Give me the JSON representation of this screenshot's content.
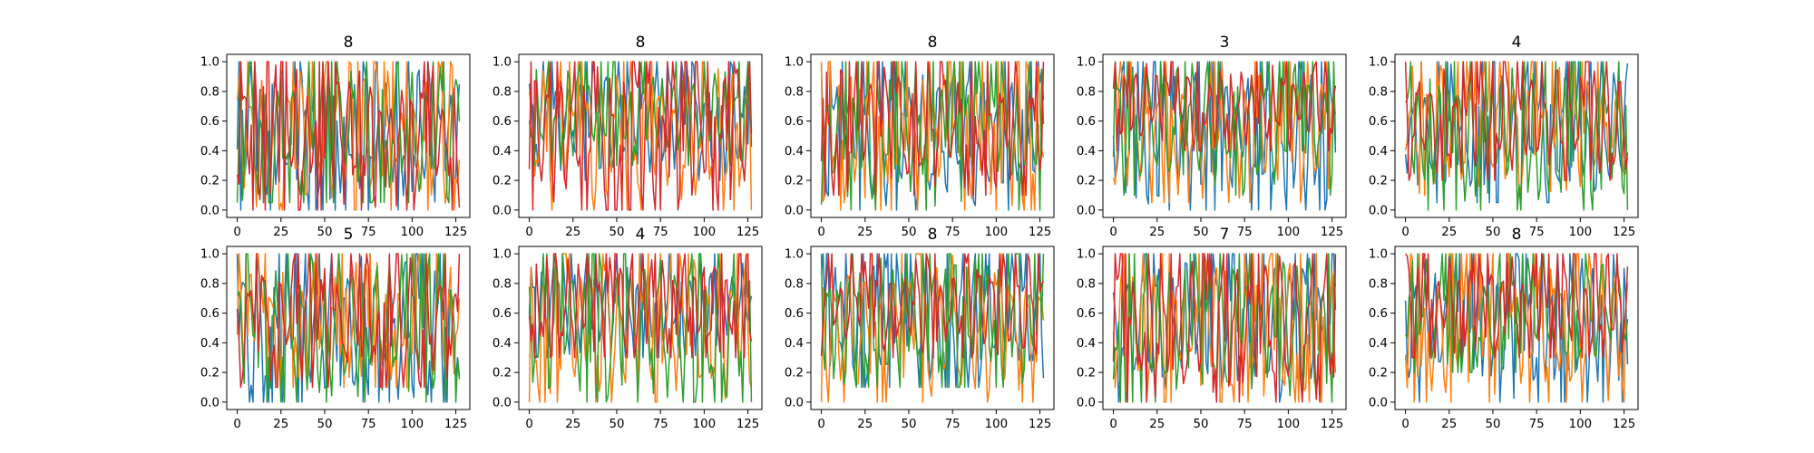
{
  "chart_data": [
    {
      "type": "line",
      "title": "8",
      "x": {
        "min": 0,
        "max": 127
      },
      "xlim": [
        -6,
        133
      ],
      "ylim": [
        -0.05,
        1.05
      ],
      "xticks": [
        0,
        25,
        50,
        75,
        100,
        125
      ],
      "yticks": [
        0.0,
        0.2,
        0.4,
        0.6,
        0.8,
        1.0
      ],
      "series": [
        {
          "color": "#1f77b4",
          "pattern": "strong oscillation 0.0-1.0"
        },
        {
          "color": "#ff7f0e",
          "pattern": "strong oscillation 0.0-1.0"
        },
        {
          "color": "#2ca02c",
          "pattern": "oscillation 0.05-1.0"
        },
        {
          "color": "#d62728",
          "pattern": "strong oscillation 0.0-1.0"
        }
      ]
    },
    {
      "type": "line",
      "title": "8",
      "x": {
        "min": 0,
        "max": 127
      },
      "xlim": [
        -6,
        133
      ],
      "ylim": [
        -0.05,
        1.05
      ],
      "xticks": [
        0,
        25,
        50,
        75,
        100,
        125
      ],
      "yticks": [
        0.0,
        0.2,
        0.4,
        0.6,
        0.8,
        1.0
      ],
      "series": [
        {
          "color": "#1f77b4",
          "pattern": "oscillation 0.2-1.0"
        },
        {
          "color": "#ff7f0e",
          "pattern": "oscillation 0.0-1.0"
        },
        {
          "color": "#2ca02c",
          "pattern": "oscillation 0.3-1.0, saturating near 1.0 around x=55-75"
        },
        {
          "color": "#d62728",
          "pattern": "oscillation 0.0-1.0, mid-level 0.5-0.8 around x=20-60"
        }
      ]
    },
    {
      "type": "line",
      "title": "8",
      "x": {
        "min": 0,
        "max": 127
      },
      "xlim": [
        -6,
        133
      ],
      "ylim": [
        -0.05,
        1.05
      ],
      "xticks": [
        0,
        25,
        50,
        75,
        100,
        125
      ],
      "yticks": [
        0.0,
        0.2,
        0.4,
        0.6,
        0.8,
        1.0
      ],
      "series": [
        {
          "color": "#1f77b4",
          "pattern": "oscillation 0.0-1.0"
        },
        {
          "color": "#ff7f0e",
          "pattern": "oscillation 0.0-1.0"
        },
        {
          "color": "#2ca02c",
          "pattern": "oscillation 0.0-1.0"
        },
        {
          "color": "#d62728",
          "pattern": "oscillation 0.1-1.0"
        }
      ]
    },
    {
      "type": "line",
      "title": "3",
      "x": {
        "min": 0,
        "max": 127
      },
      "xlim": [
        -6,
        133
      ],
      "ylim": [
        -0.05,
        1.05
      ],
      "xticks": [
        0,
        25,
        50,
        75,
        100,
        125
      ],
      "yticks": [
        0.0,
        0.2,
        0.4,
        0.6,
        0.8,
        1.0
      ],
      "series": [
        {
          "color": "#1f77b4",
          "pattern": "oscillation 0.0-1.0"
        },
        {
          "color": "#ff7f0e",
          "pattern": "oscillation 0.05-1.0"
        },
        {
          "color": "#2ca02c",
          "pattern": "oscillation 0.1-1.0"
        },
        {
          "color": "#d62728",
          "pattern": "oscillation 0.4-1.0"
        }
      ]
    },
    {
      "type": "line",
      "title": "4",
      "x": {
        "min": 0,
        "max": 127
      },
      "xlim": [
        -6,
        133
      ],
      "ylim": [
        -0.05,
        1.05
      ],
      "xticks": [
        0,
        25,
        50,
        75,
        100,
        125
      ],
      "yticks": [
        0.0,
        0.2,
        0.4,
        0.6,
        0.8,
        1.0
      ],
      "series": [
        {
          "color": "#1f77b4",
          "pattern": "oscillation 0.05-1.0"
        },
        {
          "color": "#ff7f0e",
          "pattern": "oscillation 0.1-1.0"
        },
        {
          "color": "#2ca02c",
          "pattern": "oscillation 0.0-1.0"
        },
        {
          "color": "#d62728",
          "pattern": "oscillation 0.2-1.0"
        }
      ]
    },
    {
      "type": "line",
      "title": "5",
      "x": {
        "min": 0,
        "max": 127
      },
      "xlim": [
        -6,
        133
      ],
      "ylim": [
        -0.05,
        1.05
      ],
      "xticks": [
        0,
        25,
        50,
        75,
        100,
        125
      ],
      "yticks": [
        0.0,
        0.2,
        0.4,
        0.6,
        0.8,
        1.0
      ],
      "series": [
        {
          "color": "#1f77b4",
          "pattern": "strong oscillation 0.0-1.0"
        },
        {
          "color": "#ff7f0e",
          "pattern": "oscillation 0.1-1.0"
        },
        {
          "color": "#2ca02c",
          "pattern": "oscillation 0.0-1.0"
        },
        {
          "color": "#d62728",
          "pattern": "oscillation 0.1-1.0"
        }
      ]
    },
    {
      "type": "line",
      "title": "4",
      "x": {
        "min": 0,
        "max": 127
      },
      "xlim": [
        -6,
        133
      ],
      "ylim": [
        -0.05,
        1.05
      ],
      "xticks": [
        0,
        25,
        50,
        75,
        100,
        125
      ],
      "yticks": [
        0.0,
        0.2,
        0.4,
        0.6,
        0.8,
        1.0
      ],
      "series": [
        {
          "color": "#1f77b4",
          "pattern": "oscillation 0.3-1.0"
        },
        {
          "color": "#ff7f0e",
          "pattern": "oscillation 0.0-1.0"
        },
        {
          "color": "#2ca02c",
          "pattern": "oscillation 0.0-1.0"
        },
        {
          "color": "#d62728",
          "pattern": "oscillation 0.3-1.0"
        }
      ]
    },
    {
      "type": "line",
      "title": "8",
      "x": {
        "min": 0,
        "max": 127
      },
      "xlim": [
        -6,
        133
      ],
      "ylim": [
        -0.05,
        1.05
      ],
      "xticks": [
        0,
        25,
        50,
        75,
        100,
        125
      ],
      "yticks": [
        0.0,
        0.2,
        0.4,
        0.6,
        0.8,
        1.0
      ],
      "series": [
        {
          "color": "#1f77b4",
          "pattern": "oscillation 0.1-1.0"
        },
        {
          "color": "#ff7f0e",
          "pattern": "oscillation 0.0-1.0"
        },
        {
          "color": "#2ca02c",
          "pattern": "oscillation 0.1-1.0"
        },
        {
          "color": "#d62728",
          "pattern": "oscillation 0.3-1.0"
        }
      ]
    },
    {
      "type": "line",
      "title": "7",
      "x": {
        "min": 0,
        "max": 127
      },
      "xlim": [
        -6,
        133
      ],
      "ylim": [
        -0.05,
        1.05
      ],
      "xticks": [
        0,
        25,
        50,
        75,
        100,
        125
      ],
      "yticks": [
        0.0,
        0.2,
        0.4,
        0.6,
        0.8,
        1.0
      ],
      "series": [
        {
          "color": "#1f77b4",
          "pattern": "oscillation 0.0-1.0"
        },
        {
          "color": "#ff7f0e",
          "pattern": "oscillation 0.0-1.0"
        },
        {
          "color": "#2ca02c",
          "pattern": "oscillation 0.0-1.0"
        },
        {
          "color": "#d62728",
          "pattern": "oscillation 0.0-1.0"
        }
      ]
    },
    {
      "type": "line",
      "title": "8",
      "x": {
        "min": 0,
        "max": 127
      },
      "xlim": [
        -6,
        133
      ],
      "ylim": [
        -0.05,
        1.05
      ],
      "xticks": [
        0,
        25,
        50,
        75,
        100,
        125
      ],
      "yticks": [
        0.0,
        0.2,
        0.4,
        0.6,
        0.8,
        1.0
      ],
      "series": [
        {
          "color": "#1f77b4",
          "pattern": "oscillation 0.0-1.0"
        },
        {
          "color": "#ff7f0e",
          "pattern": "oscillation 0.0-1.0"
        },
        {
          "color": "#2ca02c",
          "pattern": "oscillation 0.2-1.0"
        },
        {
          "color": "#d62728",
          "pattern": "oscillation 0.3-1.0"
        }
      ]
    }
  ]
}
